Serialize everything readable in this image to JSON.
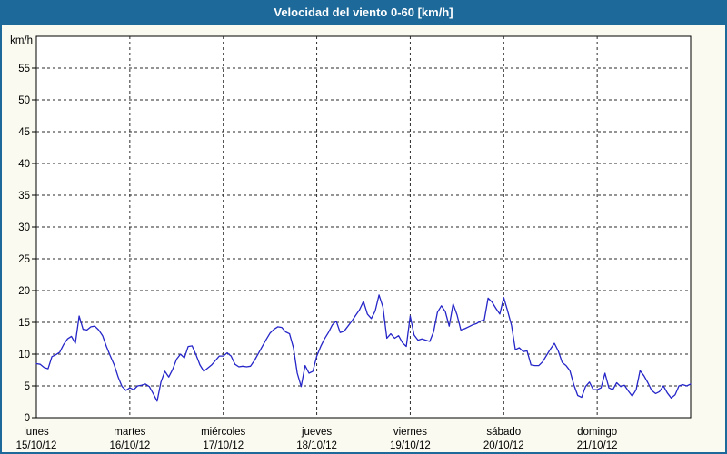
{
  "window": {
    "title": "Velocidad del viento 0-60 [km/h]"
  },
  "colors": {
    "titlebar_bg": "#1d699a",
    "frame": "#1d699a",
    "background": "#fafaf0",
    "plot_bg": "#ffffff",
    "line": "#2525c8",
    "grid": "#2a2a2a",
    "text": "#000000"
  },
  "chart_data": {
    "type": "line",
    "title": "Velocidad del viento 0-60 [km/h]",
    "xlabel": "",
    "ylabel": "km/h",
    "ylim": [
      0,
      60
    ],
    "yticks": [
      0,
      5,
      10,
      15,
      20,
      25,
      30,
      35,
      40,
      45,
      50,
      55
    ],
    "grid": true,
    "legend_position": "none",
    "x_unit": "hours",
    "xlim_hours": [
      0,
      168
    ],
    "days": [
      {
        "name": "lunes",
        "date": "15/10/12"
      },
      {
        "name": "martes",
        "date": "16/10/12"
      },
      {
        "name": "miércoles",
        "date": "17/10/12"
      },
      {
        "name": "jueves",
        "date": "18/10/12"
      },
      {
        "name": "viernes",
        "date": "19/10/12"
      },
      {
        "name": "sábado",
        "date": "20/10/12"
      },
      {
        "name": "domingo",
        "date": "21/10/12"
      }
    ],
    "series": [
      {
        "name": "Velocidad del viento (km/h)",
        "sampling": "hourly",
        "values": [
          8.5,
          8.4,
          7.9,
          7.7,
          9.6,
          9.9,
          10.3,
          11.5,
          12.4,
          12.8,
          11.7,
          16.0,
          13.9,
          13.8,
          14.3,
          14.4,
          13.8,
          12.9,
          11.2,
          9.7,
          8.3,
          6.4,
          4.9,
          4.3,
          4.7,
          4.4,
          5.0,
          5.1,
          5.3,
          4.9,
          3.8,
          2.6,
          5.6,
          7.3,
          6.4,
          7.6,
          9.2,
          10.0,
          9.4,
          11.2,
          11.3,
          9.9,
          8.3,
          7.3,
          7.8,
          8.3,
          9.0,
          9.7,
          9.7,
          10.2,
          9.7,
          8.4,
          8.0,
          8.1,
          8.0,
          8.1,
          9.0,
          10.1,
          11.2,
          12.3,
          13.3,
          13.9,
          14.3,
          14.2,
          13.5,
          13.2,
          11.0,
          7.0,
          4.9,
          8.2,
          7.0,
          7.3,
          9.7,
          11.2,
          12.4,
          13.4,
          14.6,
          15.2,
          13.4,
          13.6,
          14.4,
          15.2,
          16.1,
          17.0,
          18.3,
          16.3,
          15.6,
          16.8,
          19.3,
          17.4,
          12.5,
          13.2,
          12.5,
          12.9,
          11.8,
          11.2,
          16.0,
          13.0,
          12.2,
          12.4,
          12.2,
          12.0,
          13.5,
          16.6,
          17.6,
          16.7,
          14.4,
          17.9,
          16.2,
          13.8,
          14.0,
          14.3,
          14.6,
          14.8,
          15.2,
          15.4,
          18.8,
          18.2,
          17.2,
          16.3,
          18.9,
          16.8,
          14.5,
          10.7,
          11.0,
          10.4,
          10.5,
          8.3,
          8.2,
          8.2,
          8.8,
          9.8,
          10.8,
          11.7,
          10.5,
          8.7,
          8.2,
          7.4,
          5.2,
          3.5,
          3.2,
          4.9,
          5.6,
          4.4,
          4.4,
          4.7,
          7.0,
          4.7,
          4.4,
          5.5,
          4.9,
          5.1,
          4.2,
          3.4,
          4.4,
          7.4,
          6.6,
          5.5,
          4.3,
          3.8,
          4.1,
          5.0,
          3.9,
          3.1,
          3.6,
          5.0,
          5.2,
          5.0,
          5.3
        ]
      }
    ]
  }
}
